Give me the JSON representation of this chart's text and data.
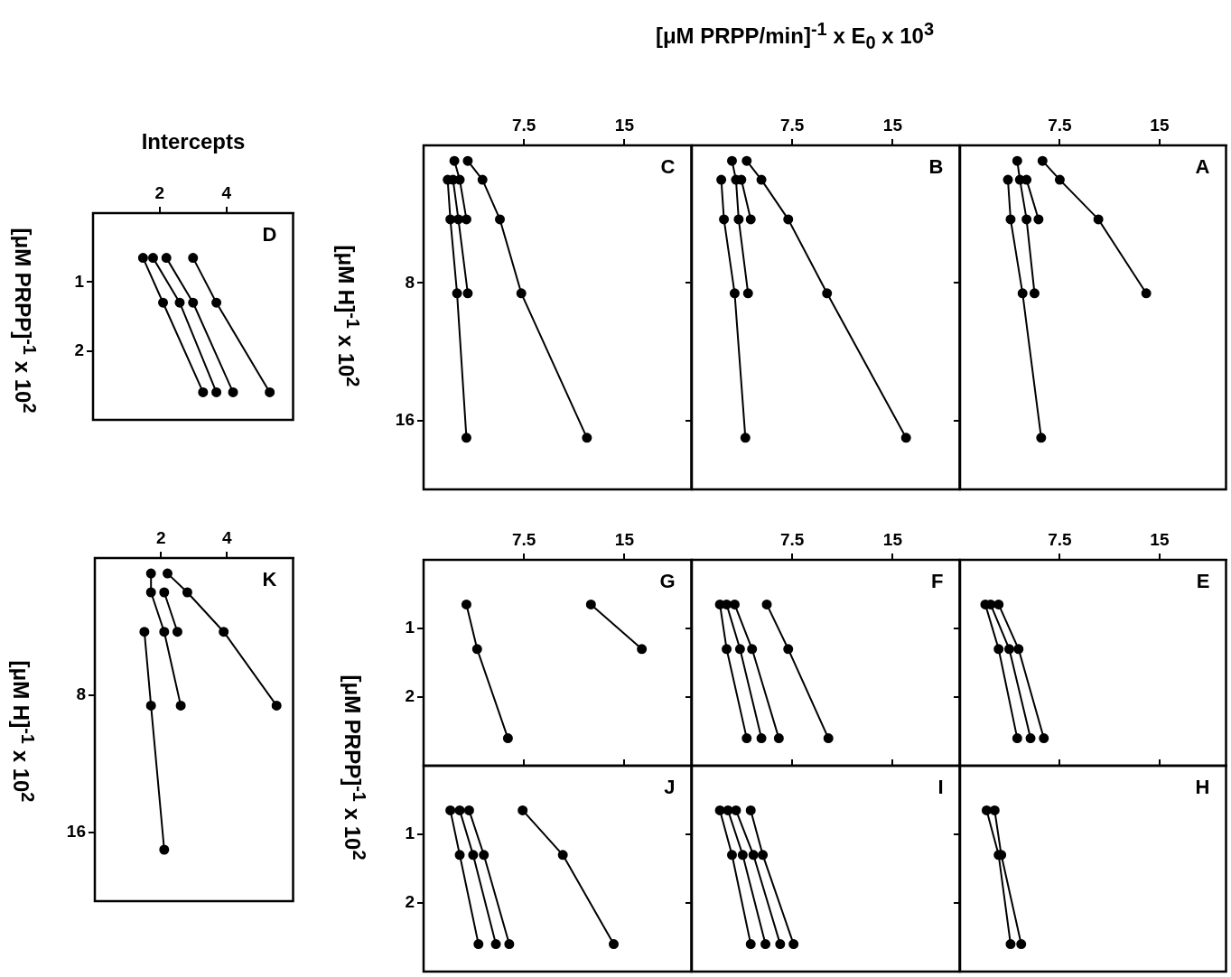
{
  "chart_data": [
    {
      "type": "line",
      "title": "A",
      "xlim": [
        0,
        20
      ],
      "xticks": [
        7.5,
        15
      ],
      "ylim": [
        20,
        0
      ],
      "yticks": [
        8,
        16
      ],
      "tick_labels": "x",
      "marker": "circle",
      "line_style": "solid",
      "series": [
        {
          "color": "#000000",
          "x": [
            3.6,
            3.8,
            4.7,
            6.1
          ],
          "values": [
            2,
            4.3,
            8.6,
            17
          ]
        },
        {
          "color": "#000000",
          "x": [
            4.3,
            4.5,
            5.0,
            5.6
          ],
          "values": [
            0.9,
            2,
            4.3,
            8.6
          ]
        },
        {
          "color": "#000000",
          "x": [
            5.0,
            5.9
          ],
          "values": [
            2,
            4.3
          ]
        },
        {
          "color": "#000000",
          "x": [
            6.2,
            7.5,
            10.4,
            14.0
          ],
          "values": [
            0.9,
            2,
            4.3,
            8.6
          ]
        }
      ]
    },
    {
      "type": "line",
      "title": "B",
      "xlabel": "[μM PRPP/min]$^{-1}$ x E$_{0}$ x 10$^{3}$",
      "xlim": [
        0,
        20
      ],
      "xticks": [
        7.5,
        15
      ],
      "ylim": [
        20,
        0
      ],
      "yticks": [
        8,
        16
      ],
      "tick_labels": "x",
      "marker": "circle",
      "line_style": "solid",
      "series": [
        {
          "color": "#000000",
          "x": [
            2.2,
            2.4,
            3.2,
            4.0
          ],
          "values": [
            2,
            4.3,
            8.6,
            17
          ]
        },
        {
          "color": "#000000",
          "x": [
            3.0,
            3.3,
            3.5,
            4.2
          ],
          "values": [
            0.9,
            2,
            4.3,
            8.6
          ]
        },
        {
          "color": "#000000",
          "x": [
            3.7,
            4.4
          ],
          "values": [
            2,
            4.3
          ]
        },
        {
          "color": "#000000",
          "x": [
            4.1,
            5.2,
            7.2,
            10.1,
            16.0
          ],
          "values": [
            0.9,
            2,
            4.3,
            8.6,
            17
          ]
        }
      ]
    },
    {
      "type": "line",
      "title": "C",
      "ylabel": "[μM H]$^{-1}$ x 10$^{2}$",
      "xlim": [
        0,
        20
      ],
      "xticks": [
        7.5,
        15
      ],
      "ylim": [
        20,
        0
      ],
      "yticks": [
        8,
        16
      ],
      "marker": "circle",
      "line_style": "solid",
      "series": [
        {
          "color": "#000000",
          "x": [
            1.8,
            2.0,
            2.5,
            3.2
          ],
          "values": [
            2,
            4.3,
            8.6,
            17
          ]
        },
        {
          "color": "#000000",
          "x": [
            2.2,
            2.6,
            3.3
          ],
          "values": [
            2,
            4.3,
            8.6
          ]
        },
        {
          "color": "#000000",
          "x": [
            2.3,
            2.7,
            3.2
          ],
          "values": [
            0.9,
            2,
            4.3
          ]
        },
        {
          "color": "#000000",
          "x": [
            3.3,
            4.4,
            5.7,
            7.3,
            12.2
          ],
          "values": [
            0.9,
            2,
            4.3,
            8.6,
            17
          ]
        }
      ]
    },
    {
      "type": "line",
      "title": "D",
      "xlabel": "Intercepts",
      "ylabel": "[μM PRPP]$^{-1}$ x 10$^{2}$",
      "xlim": [
        0,
        6
      ],
      "xticks": [
        2,
        4
      ],
      "ylim": [
        3,
        0
      ],
      "yticks": [
        1,
        2
      ],
      "marker": "circle",
      "line_style": "solid",
      "series": [
        {
          "color": "#000000",
          "x": [
            1.5,
            2.1,
            3.3
          ],
          "values": [
            0.65,
            1.3,
            2.6
          ]
        },
        {
          "color": "#000000",
          "x": [
            1.8,
            2.6,
            3.7
          ],
          "values": [
            0.65,
            1.3,
            2.6
          ]
        },
        {
          "color": "#000000",
          "x": [
            2.2,
            3.0,
            4.2
          ],
          "values": [
            0.65,
            1.3,
            2.6
          ]
        },
        {
          "color": "#000000",
          "x": [
            3.0,
            3.7,
            5.3
          ],
          "values": [
            0.65,
            1.3,
            2.6
          ]
        }
      ]
    },
    {
      "type": "line",
      "title": "E",
      "xlim": [
        0,
        20
      ],
      "xticks": [
        7.5,
        15
      ],
      "ylim": [
        3,
        0
      ],
      "yticks": [
        1,
        2
      ],
      "tick_labels": "x",
      "marker": "circle",
      "line_style": "solid",
      "series": [
        {
          "color": "#000000",
          "x": [
            1.9,
            2.9,
            4.3
          ],
          "values": [
            0.65,
            1.3,
            2.6
          ]
        },
        {
          "color": "#000000",
          "x": [
            2.3,
            3.7,
            5.3
          ],
          "values": [
            0.65,
            1.3,
            2.6
          ]
        },
        {
          "color": "#000000",
          "x": [
            2.9,
            4.4,
            6.3
          ],
          "values": [
            0.65,
            1.3,
            2.6
          ]
        }
      ]
    },
    {
      "type": "line",
      "title": "F",
      "xlim": [
        0,
        20
      ],
      "xticks": [
        7.5,
        15
      ],
      "ylim": [
        3,
        0
      ],
      "yticks": [
        1,
        2
      ],
      "tick_labels": "x",
      "marker": "circle",
      "line_style": "solid",
      "series": [
        {
          "color": "#000000",
          "x": [
            2.1,
            2.6,
            4.1
          ],
          "values": [
            0.65,
            1.3,
            2.6
          ]
        },
        {
          "color": "#000000",
          "x": [
            2.6,
            3.6,
            5.2
          ],
          "values": [
            0.65,
            1.3,
            2.6
          ]
        },
        {
          "color": "#000000",
          "x": [
            3.2,
            4.5,
            6.5
          ],
          "values": [
            0.65,
            1.3,
            2.6
          ]
        },
        {
          "color": "#000000",
          "x": [
            5.6,
            7.2,
            10.2
          ],
          "values": [
            0.65,
            1.3,
            2.6
          ]
        }
      ]
    },
    {
      "type": "line",
      "title": "G",
      "ylabel": "[μM PRPP]$^{-1}$ x 10$^{2}$",
      "xlim": [
        0,
        20
      ],
      "xticks": [
        7.5,
        15
      ],
      "ylim": [
        3,
        0
      ],
      "yticks": [
        1,
        2
      ],
      "marker": "circle",
      "line_style": "solid",
      "series": [
        {
          "color": "#000000",
          "x": [
            3.2,
            4.0,
            6.3
          ],
          "values": [
            0.65,
            1.3,
            2.6
          ]
        },
        {
          "color": "#000000",
          "x": [
            12.5,
            16.3
          ],
          "values": [
            0.65,
            1.3
          ]
        }
      ]
    },
    {
      "type": "line",
      "title": "H",
      "xlim": [
        0,
        20
      ],
      "xticks": [
        7.5,
        15
      ],
      "ylim": [
        3,
        0
      ],
      "yticks": [
        1,
        2
      ],
      "tick_labels": false,
      "marker": "circle",
      "line_style": "solid",
      "series": [
        {
          "color": "#000000",
          "x": [
            2.0,
            2.9,
            3.8
          ],
          "values": [
            0.65,
            1.3,
            2.6
          ]
        },
        {
          "color": "#000000",
          "x": [
            2.6,
            3.1,
            4.6
          ],
          "values": [
            0.65,
            1.3,
            2.6
          ]
        }
      ]
    },
    {
      "type": "line",
      "title": "I",
      "xlim": [
        0,
        20
      ],
      "xticks": [
        7.5,
        15
      ],
      "ylim": [
        3,
        0
      ],
      "yticks": [
        1,
        2
      ],
      "tick_labels": false,
      "marker": "circle",
      "line_style": "solid",
      "series": [
        {
          "color": "#000000",
          "x": [
            2.1,
            3.0,
            4.4
          ],
          "values": [
            0.65,
            1.3,
            2.6
          ]
        },
        {
          "color": "#000000",
          "x": [
            2.7,
            3.8,
            5.5
          ],
          "values": [
            0.65,
            1.3,
            2.6
          ]
        },
        {
          "color": "#000000",
          "x": [
            3.3,
            4.6,
            6.6
          ],
          "values": [
            0.65,
            1.3,
            2.6
          ]
        },
        {
          "color": "#000000",
          "x": [
            4.4,
            5.3,
            7.6
          ],
          "values": [
            0.65,
            1.3,
            2.6
          ]
        }
      ]
    },
    {
      "type": "line",
      "title": "J",
      "xlim": [
        0,
        20
      ],
      "xticks": [
        7.5,
        15
      ],
      "ylim": [
        3,
        0
      ],
      "yticks": [
        1,
        2
      ],
      "tick_labels": "y",
      "marker": "circle",
      "line_style": "solid",
      "series": [
        {
          "color": "#000000",
          "x": [
            2.0,
            2.7,
            4.1
          ],
          "values": [
            0.65,
            1.3,
            2.6
          ]
        },
        {
          "color": "#000000",
          "x": [
            2.7,
            3.7,
            5.4
          ],
          "values": [
            0.65,
            1.3,
            2.6
          ]
        },
        {
          "color": "#000000",
          "x": [
            3.4,
            4.5,
            6.4
          ],
          "values": [
            0.65,
            1.3,
            2.6
          ]
        },
        {
          "color": "#000000",
          "x": [
            7.4,
            10.4,
            14.2
          ],
          "values": [
            0.65,
            1.3,
            2.6
          ]
        }
      ]
    },
    {
      "type": "line",
      "title": "K",
      "ylabel": "[μM H]$^{-1}$ x 10$^{2}$",
      "xlim": [
        0,
        6
      ],
      "xticks": [
        2,
        4
      ],
      "ylim": [
        20,
        0
      ],
      "yticks": [
        8,
        16
      ],
      "marker": "circle",
      "line_style": "solid",
      "series": [
        {
          "color": "#000000",
          "x": [
            1.5,
            1.7,
            2.1
          ],
          "values": [
            4.3,
            8.6,
            17
          ]
        },
        {
          "color": "#000000",
          "x": [
            1.7,
            1.7,
            2.1,
            2.6
          ],
          "values": [
            0.9,
            2,
            4.3,
            8.6
          ]
        },
        {
          "color": "#000000",
          "x": [
            2.1,
            2.5
          ],
          "values": [
            2,
            4.3
          ]
        },
        {
          "color": "#000000",
          "x": [
            2.2,
            2.8,
            3.9,
            5.5
          ],
          "values": [
            0.9,
            2,
            4.3,
            8.6
          ]
        }
      ]
    }
  ]
}
